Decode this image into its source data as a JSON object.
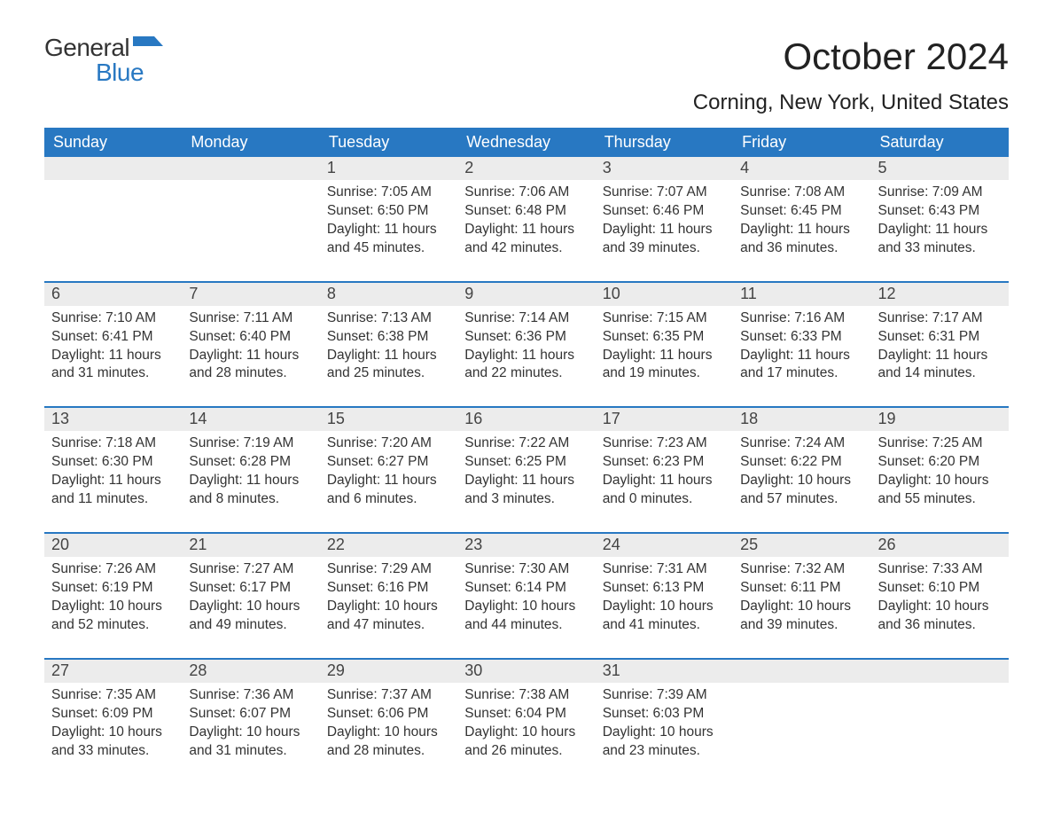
{
  "brand": {
    "general": "General",
    "blue": "Blue",
    "flag_color": "#2878c2"
  },
  "title": "October 2024",
  "subtitle": "Corning, New York, United States",
  "colors": {
    "header_bg": "#2878c2",
    "header_text": "#ffffff",
    "daynum_bg": "#ececec",
    "week_border": "#2878c2",
    "body_text": "#333333",
    "page_bg": "#ffffff"
  },
  "day_headers": [
    "Sunday",
    "Monday",
    "Tuesday",
    "Wednesday",
    "Thursday",
    "Friday",
    "Saturday"
  ],
  "labels": {
    "sunrise": "Sunrise:",
    "sunset": "Sunset:",
    "daylight": "Daylight:"
  },
  "weeks": [
    [
      null,
      null,
      {
        "n": "1",
        "sunrise": "7:05 AM",
        "sunset": "6:50 PM",
        "dl1": "11 hours",
        "dl2": "and 45 minutes."
      },
      {
        "n": "2",
        "sunrise": "7:06 AM",
        "sunset": "6:48 PM",
        "dl1": "11 hours",
        "dl2": "and 42 minutes."
      },
      {
        "n": "3",
        "sunrise": "7:07 AM",
        "sunset": "6:46 PM",
        "dl1": "11 hours",
        "dl2": "and 39 minutes."
      },
      {
        "n": "4",
        "sunrise": "7:08 AM",
        "sunset": "6:45 PM",
        "dl1": "11 hours",
        "dl2": "and 36 minutes."
      },
      {
        "n": "5",
        "sunrise": "7:09 AM",
        "sunset": "6:43 PM",
        "dl1": "11 hours",
        "dl2": "and 33 minutes."
      }
    ],
    [
      {
        "n": "6",
        "sunrise": "7:10 AM",
        "sunset": "6:41 PM",
        "dl1": "11 hours",
        "dl2": "and 31 minutes."
      },
      {
        "n": "7",
        "sunrise": "7:11 AM",
        "sunset": "6:40 PM",
        "dl1": "11 hours",
        "dl2": "and 28 minutes."
      },
      {
        "n": "8",
        "sunrise": "7:13 AM",
        "sunset": "6:38 PM",
        "dl1": "11 hours",
        "dl2": "and 25 minutes."
      },
      {
        "n": "9",
        "sunrise": "7:14 AM",
        "sunset": "6:36 PM",
        "dl1": "11 hours",
        "dl2": "and 22 minutes."
      },
      {
        "n": "10",
        "sunrise": "7:15 AM",
        "sunset": "6:35 PM",
        "dl1": "11 hours",
        "dl2": "and 19 minutes."
      },
      {
        "n": "11",
        "sunrise": "7:16 AM",
        "sunset": "6:33 PM",
        "dl1": "11 hours",
        "dl2": "and 17 minutes."
      },
      {
        "n": "12",
        "sunrise": "7:17 AM",
        "sunset": "6:31 PM",
        "dl1": "11 hours",
        "dl2": "and 14 minutes."
      }
    ],
    [
      {
        "n": "13",
        "sunrise": "7:18 AM",
        "sunset": "6:30 PM",
        "dl1": "11 hours",
        "dl2": "and 11 minutes."
      },
      {
        "n": "14",
        "sunrise": "7:19 AM",
        "sunset": "6:28 PM",
        "dl1": "11 hours",
        "dl2": "and 8 minutes."
      },
      {
        "n": "15",
        "sunrise": "7:20 AM",
        "sunset": "6:27 PM",
        "dl1": "11 hours",
        "dl2": "and 6 minutes."
      },
      {
        "n": "16",
        "sunrise": "7:22 AM",
        "sunset": "6:25 PM",
        "dl1": "11 hours",
        "dl2": "and 3 minutes."
      },
      {
        "n": "17",
        "sunrise": "7:23 AM",
        "sunset": "6:23 PM",
        "dl1": "11 hours",
        "dl2": "and 0 minutes."
      },
      {
        "n": "18",
        "sunrise": "7:24 AM",
        "sunset": "6:22 PM",
        "dl1": "10 hours",
        "dl2": "and 57 minutes."
      },
      {
        "n": "19",
        "sunrise": "7:25 AM",
        "sunset": "6:20 PM",
        "dl1": "10 hours",
        "dl2": "and 55 minutes."
      }
    ],
    [
      {
        "n": "20",
        "sunrise": "7:26 AM",
        "sunset": "6:19 PM",
        "dl1": "10 hours",
        "dl2": "and 52 minutes."
      },
      {
        "n": "21",
        "sunrise": "7:27 AM",
        "sunset": "6:17 PM",
        "dl1": "10 hours",
        "dl2": "and 49 minutes."
      },
      {
        "n": "22",
        "sunrise": "7:29 AM",
        "sunset": "6:16 PM",
        "dl1": "10 hours",
        "dl2": "and 47 minutes."
      },
      {
        "n": "23",
        "sunrise": "7:30 AM",
        "sunset": "6:14 PM",
        "dl1": "10 hours",
        "dl2": "and 44 minutes."
      },
      {
        "n": "24",
        "sunrise": "7:31 AM",
        "sunset": "6:13 PM",
        "dl1": "10 hours",
        "dl2": "and 41 minutes."
      },
      {
        "n": "25",
        "sunrise": "7:32 AM",
        "sunset": "6:11 PM",
        "dl1": "10 hours",
        "dl2": "and 39 minutes."
      },
      {
        "n": "26",
        "sunrise": "7:33 AM",
        "sunset": "6:10 PM",
        "dl1": "10 hours",
        "dl2": "and 36 minutes."
      }
    ],
    [
      {
        "n": "27",
        "sunrise": "7:35 AM",
        "sunset": "6:09 PM",
        "dl1": "10 hours",
        "dl2": "and 33 minutes."
      },
      {
        "n": "28",
        "sunrise": "7:36 AM",
        "sunset": "6:07 PM",
        "dl1": "10 hours",
        "dl2": "and 31 minutes."
      },
      {
        "n": "29",
        "sunrise": "7:37 AM",
        "sunset": "6:06 PM",
        "dl1": "10 hours",
        "dl2": "and 28 minutes."
      },
      {
        "n": "30",
        "sunrise": "7:38 AM",
        "sunset": "6:04 PM",
        "dl1": "10 hours",
        "dl2": "and 26 minutes."
      },
      {
        "n": "31",
        "sunrise": "7:39 AM",
        "sunset": "6:03 PM",
        "dl1": "10 hours",
        "dl2": "and 23 minutes."
      },
      null,
      null
    ]
  ]
}
